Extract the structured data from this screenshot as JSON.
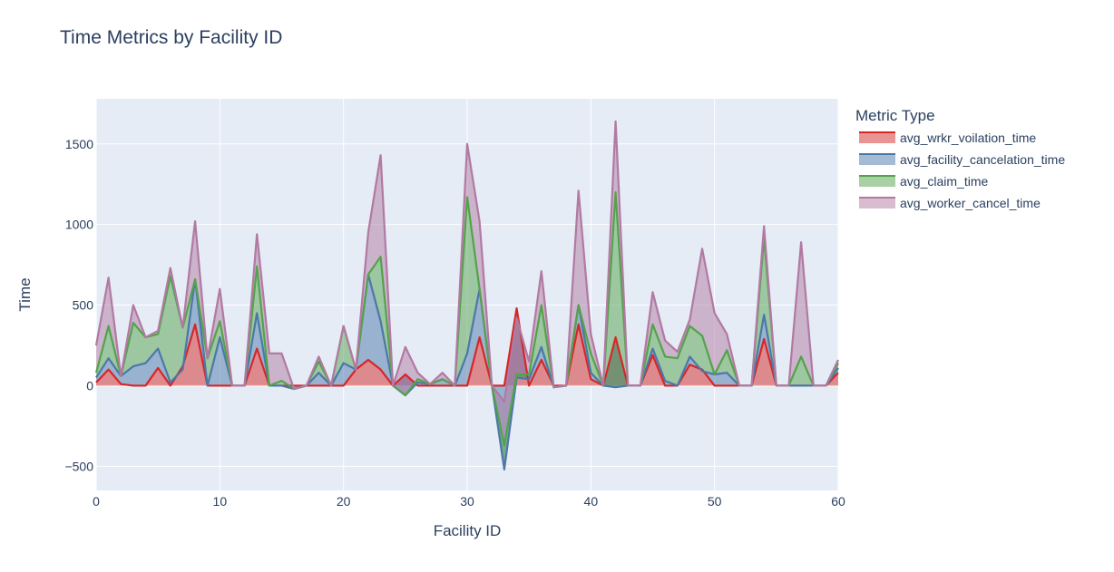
{
  "chart_data": {
    "type": "area",
    "title": "Time Metrics by Facility ID",
    "xlabel": "Facility ID",
    "ylabel": "Time",
    "xlim": [
      0,
      60
    ],
    "ylim": [
      -650,
      1780
    ],
    "x_ticks": [
      0,
      10,
      20,
      30,
      40,
      50,
      60
    ],
    "x_tick_labels": [
      "0",
      "10",
      "20",
      "30",
      "40",
      "50",
      "60"
    ],
    "y_ticks": [
      -500,
      0,
      500,
      1000,
      1500
    ],
    "y_tick_labels": [
      "−500",
      "0",
      "500",
      "1000",
      "1500"
    ],
    "grid": true,
    "stacked": true,
    "legend_title": "Metric Type",
    "legend_position": "right",
    "x": [
      0,
      1,
      2,
      3,
      4,
      5,
      6,
      7,
      8,
      9,
      10,
      11,
      12,
      13,
      14,
      15,
      16,
      17,
      18,
      19,
      20,
      21,
      22,
      23,
      24,
      25,
      26,
      27,
      28,
      29,
      30,
      31,
      32,
      33,
      34,
      35,
      36,
      37,
      38,
      39,
      40,
      41,
      42,
      43,
      44,
      45,
      46,
      47,
      48,
      49,
      50,
      51,
      52,
      53,
      54,
      55,
      56,
      57,
      58,
      59,
      60
    ],
    "series": [
      {
        "name": "avg_wrkr_voilation_time",
        "color": "#d62728",
        "values": [
          20,
          100,
          10,
          0,
          0,
          110,
          0,
          120,
          380,
          0,
          0,
          0,
          0,
          230,
          0,
          0,
          0,
          0,
          0,
          0,
          0,
          100,
          160,
          100,
          0,
          70,
          0,
          0,
          0,
          0,
          0,
          300,
          0,
          0,
          480,
          0,
          160,
          0,
          0,
          380,
          40,
          0,
          300,
          0,
          0,
          190,
          0,
          0,
          130,
          100,
          0,
          0,
          0,
          0,
          290,
          0,
          0,
          0,
          0,
          0,
          80
        ]
      },
      {
        "name": "avg_facility_cancelation_time",
        "color": "#4c78a8",
        "values": [
          30,
          70,
          50,
          120,
          140,
          120,
          20,
          -20,
          280,
          0,
          300,
          0,
          0,
          220,
          0,
          0,
          -20,
          0,
          80,
          0,
          140,
          0,
          530,
          300,
          0,
          -130,
          20,
          10,
          40,
          0,
          200,
          300,
          0,
          -520,
          -430,
          40,
          80,
          -10,
          0,
          120,
          40,
          0,
          -310,
          0,
          0,
          40,
          30,
          0,
          50,
          -10,
          70,
          80,
          0,
          0,
          150,
          0,
          0,
          0,
          0,
          0,
          30
        ]
      },
      {
        "name": "avg_claim_time",
        "color": "#54a24b",
        "values": [
          30,
          200,
          0,
          270,
          160,
          90,
          660,
          260,
          0,
          170,
          100,
          0,
          0,
          290,
          0,
          30,
          0,
          0,
          70,
          0,
          230,
          0,
          0,
          400,
          0,
          0,
          20,
          0,
          0,
          0,
          970,
          0,
          0,
          150,
          20,
          30,
          260,
          0,
          0,
          0,
          120,
          0,
          1210,
          0,
          0,
          150,
          150,
          170,
          190,
          220,
          0,
          140,
          0,
          0,
          480,
          0,
          0,
          180,
          0,
          0,
          30
        ]
      },
      {
        "name": "avg_worker_cancel_time",
        "color": "#b279a2",
        "values": [
          170,
          300,
          0,
          110,
          0,
          20,
          50,
          0,
          360,
          0,
          200,
          0,
          0,
          200,
          200,
          170,
          0,
          0,
          30,
          0,
          0,
          0,
          260,
          630,
          0,
          300,
          40,
          0,
          40,
          0,
          330,
          420,
          0,
          270,
          350,
          80,
          210,
          0,
          0,
          710,
          120,
          0,
          440,
          0,
          0,
          200,
          100,
          40,
          40,
          540,
          380,
          100,
          0,
          0,
          70,
          0,
          0,
          710,
          0,
          0,
          20
        ]
      }
    ]
  }
}
